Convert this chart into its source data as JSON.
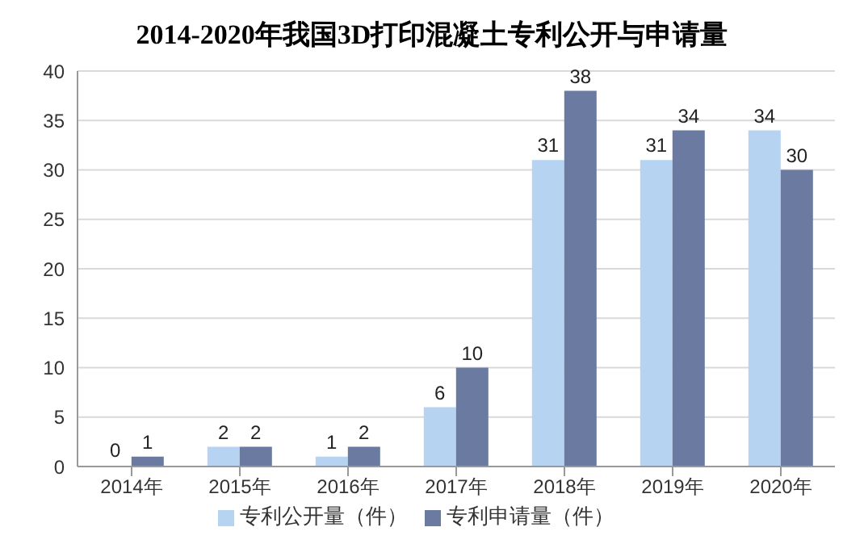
{
  "chart_data": {
    "type": "bar",
    "title": "2014-2020年我国3D打印混凝土专利公开与申请量",
    "categories": [
      "2014年",
      "2015年",
      "2016年",
      "2017年",
      "2018年",
      "2019年",
      "2020年"
    ],
    "series": [
      {
        "name": "专利公开量（件）",
        "color": "#b7d3f2",
        "values": [
          0,
          2,
          1,
          6,
          31,
          31,
          34
        ]
      },
      {
        "name": "专利申请量（件）",
        "color": "#6a7aa0",
        "values": [
          1,
          2,
          2,
          10,
          38,
          34,
          30
        ]
      }
    ],
    "ylim": [
      0,
      40
    ],
    "yticks": [
      0,
      5,
      10,
      15,
      20,
      25,
      30,
      35,
      40
    ],
    "grid": "y",
    "legend": "bottom",
    "data_labels": true
  }
}
